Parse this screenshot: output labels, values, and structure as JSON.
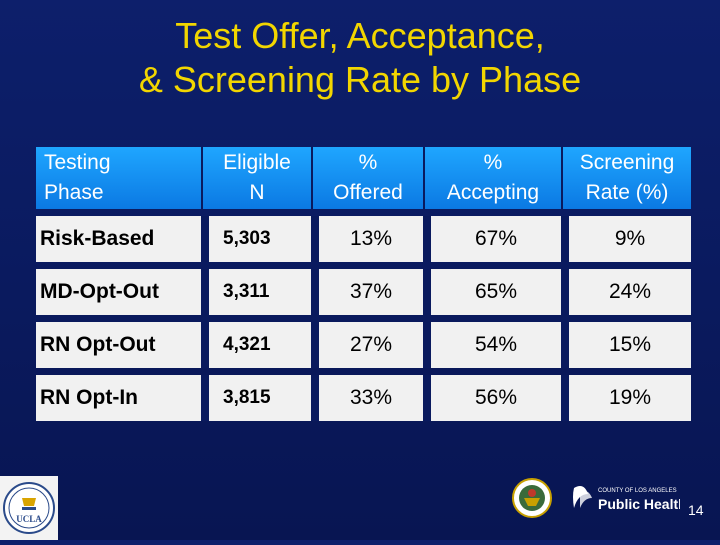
{
  "title": {
    "line1": "Test Offer, Acceptance,",
    "line2": "& Screening Rate by Phase"
  },
  "table": {
    "headers": [
      {
        "line1": "Testing",
        "line2": "Phase"
      },
      {
        "line1": "Eligible",
        "line2": "N"
      },
      {
        "line1": "%",
        "line2": "Offered"
      },
      {
        "line1": "%",
        "line2": "Accepting"
      },
      {
        "line1": "Screening",
        "line2": "Rate (%)"
      }
    ],
    "rows": [
      {
        "phase": "Risk-Based",
        "eligible": "5,303",
        "offered": "13%",
        "accepting": "67%",
        "rate": "9%"
      },
      {
        "phase": "MD-Opt-Out",
        "eligible": "3,311",
        "offered": "37%",
        "accepting": "65%",
        "rate": "24%"
      },
      {
        "phase": "RN Opt-Out",
        "eligible": "4,321",
        "offered": "27%",
        "accepting": "54%",
        "rate": "15%"
      },
      {
        "phase": "RN Opt-In",
        "eligible": "3,815",
        "offered": "33%",
        "accepting": "56%",
        "rate": "19%"
      }
    ]
  },
  "logos": {
    "left": "UCLA",
    "right_county": "COUNTY OF LOS ANGELES",
    "right_dept": "Public Health"
  },
  "page_number": "14",
  "colors": {
    "background": "#0a1a5e",
    "title": "#f2d600",
    "header": "#0b79e3",
    "cell": "#f1f1f1"
  }
}
